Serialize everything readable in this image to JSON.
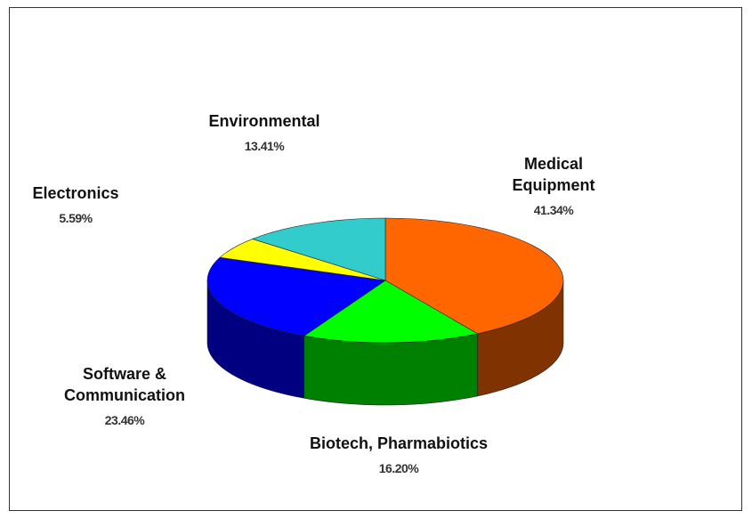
{
  "chart_data": {
    "type": "pie",
    "categories": [
      "Medical Equipment",
      "Biotech, Pharmabiotics",
      "Software & Communication",
      "Electronics",
      "Environmental"
    ],
    "values": [
      41.34,
      16.2,
      23.46,
      5.59,
      13.41
    ],
    "value_labels": [
      "41.34%",
      "16.20%",
      "23.46%",
      "5.59%",
      "13.41%"
    ],
    "colors": [
      "#ff6600",
      "#00ff00",
      "#0000ff",
      "#ffff00",
      "#33cccc"
    ]
  }
}
